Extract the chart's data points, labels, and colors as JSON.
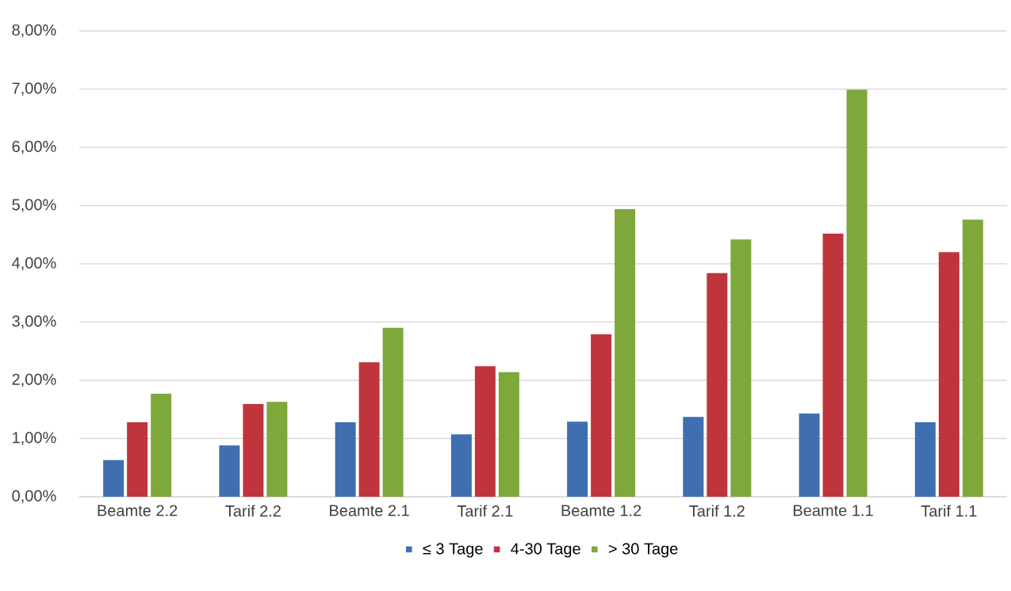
{
  "chart_data": {
    "type": "bar",
    "categories": [
      "Beamte 2.2",
      "Tarif 2.2",
      "Beamte 2.1",
      "Tarif 2.1",
      "Beamte 1.2",
      "Tarif 1.2",
      "Beamte 1.1",
      "Tarif 1.1"
    ],
    "series": [
      {
        "name": "≤ 3 Tage",
        "color": "#3f6fb0",
        "values": [
          0.63,
          0.88,
          1.28,
          1.07,
          1.29,
          1.37,
          1.43,
          1.28
        ]
      },
      {
        "name": "4-30 Tage",
        "color": "#c0343c",
        "values": [
          1.28,
          1.59,
          2.31,
          2.24,
          2.79,
          3.84,
          4.52,
          4.2
        ]
      },
      {
        "name": "> 30 Tage",
        "color": "#7ea83a",
        "values": [
          1.77,
          1.63,
          2.9,
          2.14,
          4.94,
          4.42,
          6.99,
          4.76
        ]
      }
    ],
    "ylim": [
      0,
      8
    ],
    "yticks": [
      {
        "value": 0,
        "label": "0,00%"
      },
      {
        "value": 1,
        "label": "1,00%"
      },
      {
        "value": 2,
        "label": "2,00%"
      },
      {
        "value": 3,
        "label": "3,00%"
      },
      {
        "value": 4,
        "label": "4,00%"
      },
      {
        "value": 5,
        "label": "5,00%"
      },
      {
        "value": 6,
        "label": "6,00%"
      },
      {
        "value": 7,
        "label": "7,00%"
      },
      {
        "value": 8,
        "label": "8,00%"
      }
    ],
    "grid": "y",
    "legend": "bottom"
  }
}
